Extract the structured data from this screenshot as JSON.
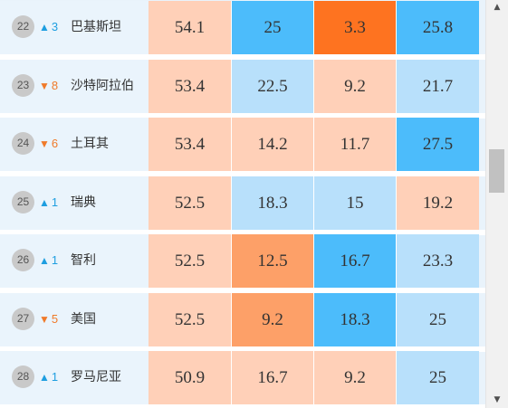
{
  "colors": {
    "peach": "#ffd0b8",
    "light_blue": "#b8e0fb",
    "blue": "#4cbcfb",
    "mid_orange": "#fda068",
    "deep_orange": "#fe7320",
    "up": "#1e9ee0",
    "down": "#f07a2a"
  },
  "rows": [
    {
      "rank": "22",
      "change_dir": "up",
      "change_arrow": "▲",
      "change": "3",
      "country": "巴基斯坦",
      "values": [
        "54.1",
        "25",
        "3.3",
        "25.8"
      ],
      "cell_colors": [
        "#ffd0b8",
        "#4cbcfb",
        "#fe7320",
        "#4cbcfb"
      ]
    },
    {
      "rank": "23",
      "change_dir": "down",
      "change_arrow": "▼",
      "change": "8",
      "country": "沙特阿拉伯",
      "values": [
        "53.4",
        "22.5",
        "9.2",
        "21.7"
      ],
      "cell_colors": [
        "#ffd0b8",
        "#b8e0fb",
        "#ffd0b8",
        "#b8e0fb"
      ]
    },
    {
      "rank": "24",
      "change_dir": "down",
      "change_arrow": "▼",
      "change": "6",
      "country": "土耳其",
      "values": [
        "53.4",
        "14.2",
        "11.7",
        "27.5"
      ],
      "cell_colors": [
        "#ffd0b8",
        "#ffd0b8",
        "#ffd0b8",
        "#4cbcfb"
      ]
    },
    {
      "rank": "25",
      "change_dir": "up",
      "change_arrow": "▲",
      "change": "1",
      "country": "瑞典",
      "values": [
        "52.5",
        "18.3",
        "15",
        "19.2"
      ],
      "cell_colors": [
        "#ffd0b8",
        "#b8e0fb",
        "#b8e0fb",
        "#ffd0b8"
      ]
    },
    {
      "rank": "26",
      "change_dir": "up",
      "change_arrow": "▲",
      "change": "1",
      "country": "智利",
      "values": [
        "52.5",
        "12.5",
        "16.7",
        "23.3"
      ],
      "cell_colors": [
        "#ffd0b8",
        "#fda068",
        "#4cbcfb",
        "#b8e0fb"
      ]
    },
    {
      "rank": "27",
      "change_dir": "down",
      "change_arrow": "▼",
      "change": "5",
      "country": "美国",
      "values": [
        "52.5",
        "9.2",
        "18.3",
        "25"
      ],
      "cell_colors": [
        "#ffd0b8",
        "#fda068",
        "#4cbcfb",
        "#b8e0fb"
      ]
    },
    {
      "rank": "28",
      "change_dir": "up",
      "change_arrow": "▲",
      "change": "1",
      "country": "罗马尼亚",
      "values": [
        "50.9",
        "16.7",
        "9.2",
        "25"
      ],
      "cell_colors": [
        "#ffd0b8",
        "#ffd0b8",
        "#ffd0b8",
        "#b8e0fb"
      ]
    }
  ],
  "scrollbar": {
    "up_arrow": "▲",
    "down_arrow": "▼"
  }
}
